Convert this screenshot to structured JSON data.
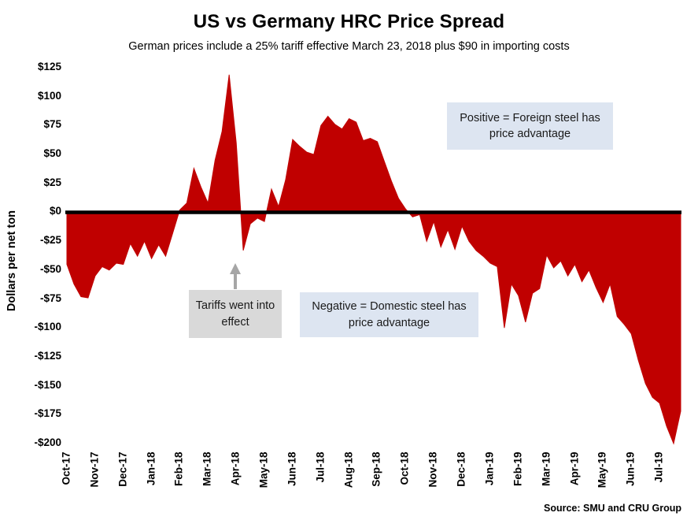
{
  "chart": {
    "title": "US vs Germany HRC Price Spread",
    "subtitle": "German prices include a 25% tariff effective March 23, 2018 plus $90 in importing costs",
    "ylabel": "Dollars per net ton",
    "source": "Source: SMU and CRU Group"
  },
  "annotations": {
    "positive": "Positive = Foreign steel has price advantage",
    "negative": "Negative = Domestic steel has price advantage",
    "tariffs": "Tariffs went into effect"
  },
  "chart_data": {
    "type": "area",
    "title": "US vs Germany HRC Price Spread",
    "subtitle": "German prices include a 25% tariff effective March 23, 2018 plus $90 in importing costs",
    "xlabel": "",
    "ylabel": "Dollars per net ton",
    "ylim": [
      -200,
      125
    ],
    "grid": false,
    "legend": "none",
    "x_tick_rotation": 90,
    "fill_color": "#C00000",
    "zero_line_color": "#000000",
    "callout_blue": "#dde5f1",
    "callout_gray": "#d9d9d9",
    "arrow_color": "#a6a6a6",
    "y_tick_values": [
      125,
      100,
      75,
      50,
      25,
      0,
      -25,
      -50,
      -75,
      -100,
      -125,
      -150,
      -175,
      -200
    ],
    "y_tick_labels": [
      "$125",
      "$100",
      "$75",
      "$50",
      "$25",
      "$0",
      "-$25",
      "-$50",
      "-$75",
      "-$100",
      "-$125",
      "-$150",
      "-$175",
      "-$200"
    ],
    "categories": [
      "Oct-17",
      "Nov-17",
      "Dec-17",
      "Jan-18",
      "Feb-18",
      "Mar-18",
      "Apr-18",
      "May-18",
      "Jun-18",
      "Jul-18",
      "Aug-18",
      "Sep-18",
      "Oct-18",
      "Nov-18",
      "Dec-18",
      "Jan-19",
      "Feb-19",
      "Mar-19",
      "Apr-19",
      "May-19",
      "Jun-19",
      "Jul-19"
    ],
    "points_per_month": 4,
    "series": [
      {
        "name": "US vs Germany HRC Price Spread",
        "values": [
          -45,
          -62,
          -73,
          -74,
          -55,
          -47,
          -50,
          -44,
          -45,
          -27,
          -38,
          -25,
          -40,
          -28,
          -38,
          -18,
          2,
          8,
          38,
          22,
          8,
          45,
          70,
          119,
          60,
          -33,
          -10,
          -5,
          -8,
          20,
          5,
          28,
          63,
          57,
          52,
          50,
          75,
          83,
          76,
          72,
          81,
          78,
          62,
          64,
          61,
          44,
          27,
          12,
          3,
          -4,
          -2,
          -25,
          -8,
          -30,
          -15,
          -32,
          -12,
          -25,
          -33,
          -38,
          -44,
          -47,
          -100,
          -62,
          -72,
          -95,
          -70,
          -66,
          -37,
          -48,
          -42,
          -55,
          -45,
          -60,
          -50,
          -65,
          -78,
          -62,
          -90,
          -97,
          -105,
          -128,
          -148,
          -160,
          -165,
          -185,
          -200,
          -172
        ]
      }
    ]
  }
}
